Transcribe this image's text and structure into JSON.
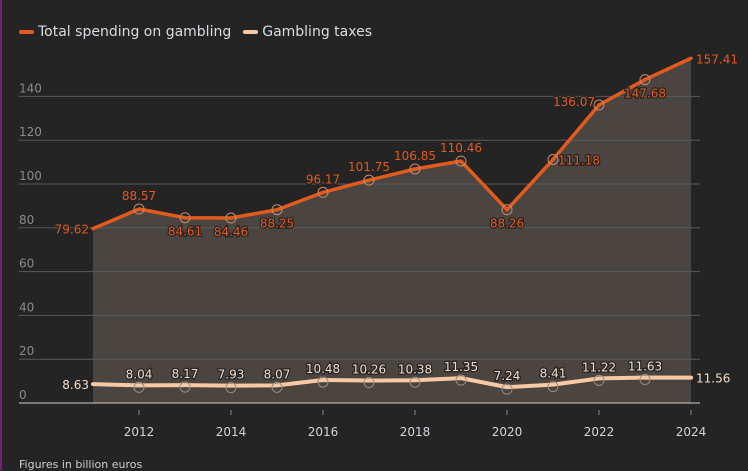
{
  "chart_data": {
    "type": "line",
    "x": [
      2011,
      2012,
      2013,
      2014,
      2015,
      2016,
      2017,
      2018,
      2019,
      2020,
      2021,
      2022,
      2023,
      2024
    ],
    "series": [
      {
        "name": "Total spending on gambling",
        "color": "#e35a1e",
        "values": [
          79.62,
          88.57,
          84.61,
          84.46,
          88.25,
          96.17,
          101.75,
          106.85,
          110.46,
          88.26,
          111.18,
          136.07,
          147.68,
          157.41
        ]
      },
      {
        "name": "Gambling taxes",
        "color": "#f9c9a4",
        "values": [
          8.63,
          8.04,
          8.17,
          7.93,
          8.07,
          10.48,
          10.26,
          10.38,
          11.35,
          7.24,
          8.41,
          11.22,
          11.63,
          11.56
        ]
      }
    ],
    "xticks": [
      "2012",
      "2014",
      "2016",
      "2018",
      "2020",
      "2022",
      "2024"
    ],
    "yticks": [
      "0",
      "20",
      "40",
      "60",
      "80",
      "100",
      "120",
      "140"
    ],
    "ylim": [
      0,
      160
    ],
    "grid": true,
    "legend": "top-left",
    "note": "Figures in billion euros"
  }
}
